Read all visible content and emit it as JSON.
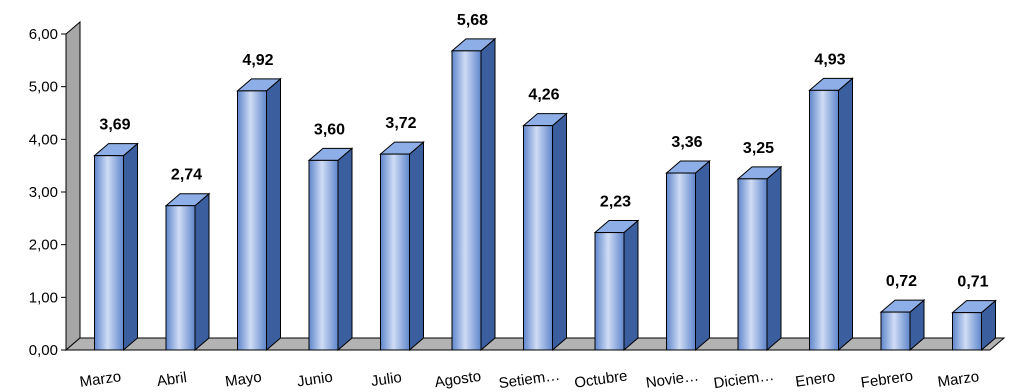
{
  "chart_data": {
    "type": "bar",
    "style": "3d-column",
    "categories": [
      "Marzo",
      "Abril",
      "Mayo",
      "Junio",
      "Julio",
      "Agosto",
      "Setiem…",
      "Octubre",
      "Novie…",
      "Diciem…",
      "Enero",
      "Febrero",
      "Marzo"
    ],
    "values": [
      3.69,
      2.74,
      4.92,
      3.6,
      3.72,
      5.68,
      4.26,
      2.23,
      3.36,
      3.25,
      4.93,
      0.72,
      0.71
    ],
    "value_labels": [
      "3,69",
      "2,74",
      "4,92",
      "3,60",
      "3,72",
      "5,68",
      "4,26",
      "2,23",
      "3,36",
      "3,25",
      "4,93",
      "0,72",
      "0,71"
    ],
    "y_ticks": [
      "0,00",
      "1,00",
      "2,00",
      "3,00",
      "4,00",
      "5,00",
      "6,00"
    ],
    "ylim": [
      0,
      6
    ],
    "title": "",
    "xlabel": "",
    "ylabel": "",
    "grid": false,
    "legend": "none",
    "colors": {
      "bar_front": "#6f96d8",
      "bar_light": "#cfdcf5",
      "bar_side": "#3b5f9e",
      "bar_top": "#8daee6",
      "outline": "#000000",
      "wall": "#a6a6a6",
      "floor": "#b3b3b3"
    }
  }
}
